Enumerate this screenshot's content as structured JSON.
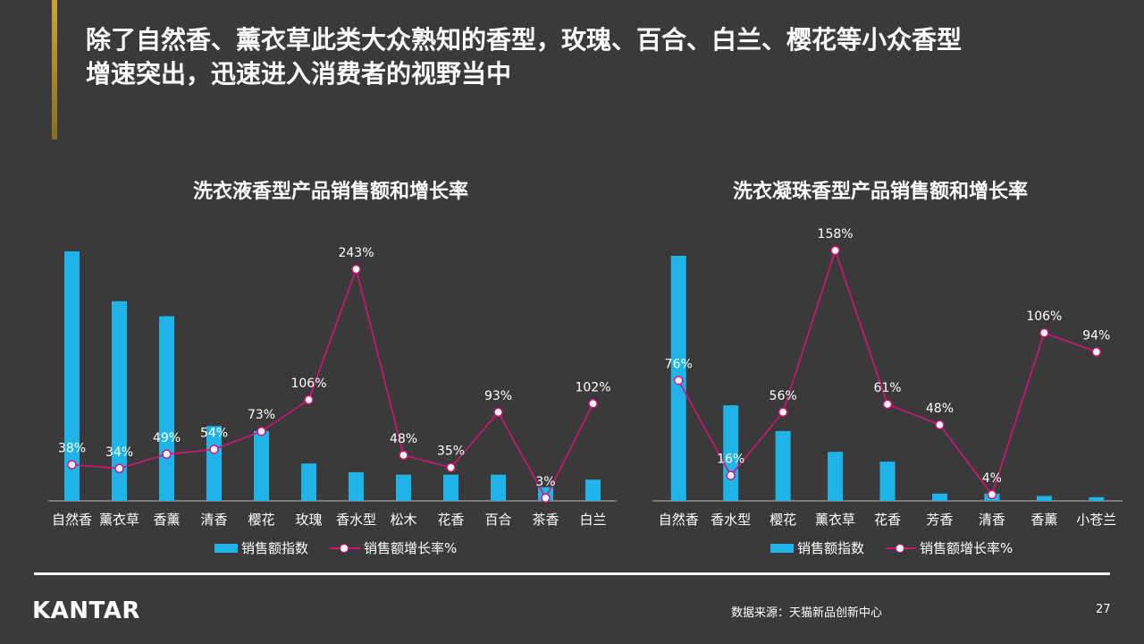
{
  "header": {
    "title_line1": "除了自然香、薰衣草此类大众熟知的香型，玫瑰、百合、白兰、樱花等小众香型",
    "title_line2": "增速突出，迅速进入消费者的视野当中"
  },
  "colors": {
    "bar": "#1fb4e8",
    "line": "#d6127a",
    "accent": "#caa43a",
    "background": "#3a3a3a"
  },
  "legend": {
    "bar_label": "销售额指数",
    "line_label": "销售额增长率%"
  },
  "chart_data": [
    {
      "type": "bar",
      "title": "洗衣液香型产品销售额和增长率",
      "categories": [
        "自然香",
        "薰衣草",
        "香薰",
        "清香",
        "樱花",
        "玫瑰",
        "香水型",
        "松木",
        "花香",
        "百合",
        "茶香",
        "白兰"
      ],
      "series": [
        {
          "name": "销售额指数",
          "type": "bar",
          "values": [
            100,
            80,
            74,
            30,
            28,
            15,
            11.5,
            10.5,
            10.5,
            10.5,
            5.5,
            8.5
          ]
        },
        {
          "name": "销售额增长率%",
          "type": "line",
          "values": [
            38,
            34,
            49,
            54,
            73,
            106,
            243,
            48,
            35,
            93,
            3,
            102
          ]
        }
      ],
      "value_labels": [
        "38%",
        "34%",
        "49%",
        "54%",
        "73%",
        "106%",
        "243%",
        "48%",
        "35%",
        "93%",
        "3%",
        "102%"
      ]
    },
    {
      "type": "bar",
      "title": "洗衣凝珠香型产品销售额和增长率",
      "categories": [
        "自然香",
        "香水型",
        "樱花",
        "薰衣草",
        "花香",
        "芳香",
        "清香",
        "香薰",
        "小苍兰"
      ],
      "series": [
        {
          "name": "销售额指数",
          "type": "bar",
          "values": [
            100,
            39,
            28.5,
            20,
            16,
            3,
            3,
            2,
            1.5
          ]
        },
        {
          "name": "销售额增长率%",
          "type": "line",
          "values": [
            76,
            16,
            56,
            158,
            61,
            48,
            4,
            106,
            94
          ]
        }
      ],
      "value_labels": [
        "76%",
        "16%",
        "56%",
        "158%",
        "61%",
        "48%",
        "4%",
        "106%",
        "94%"
      ]
    }
  ],
  "footer": {
    "logo": "KANTAR",
    "source": "数据来源：天猫新品创新中心",
    "page_number": "27"
  }
}
